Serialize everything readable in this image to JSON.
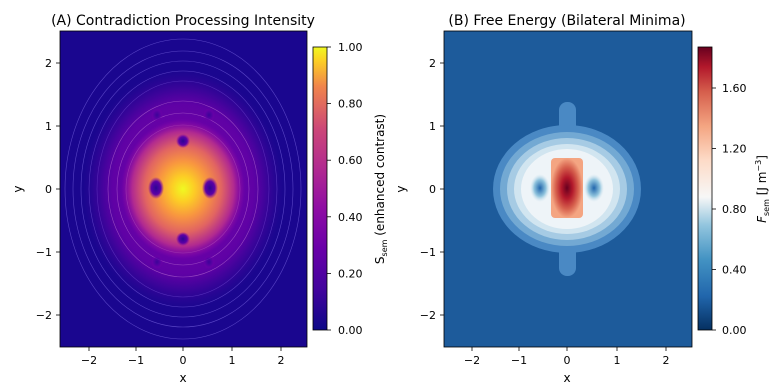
{
  "chart_data": [
    {
      "type": "heatmap",
      "title": "(A) Contradiction Processing Intensity",
      "xlabel": "x",
      "ylabel": "y",
      "xlim": [
        -2.5,
        2.5
      ],
      "ylim": [
        -2.5,
        2.5
      ],
      "xticks": [
        "−2",
        "−1",
        "0",
        "1",
        "2"
      ],
      "yticks": [
        "−2",
        "−1",
        "0",
        "1",
        "2"
      ],
      "colormap": "plasma",
      "colorbar": {
        "label_main": "S",
        "label_sub": "sem",
        "label_rest": " (enhanced contrast)",
        "range": [
          0,
          1
        ],
        "ticks": [
          "0.00",
          "0.20",
          "0.40",
          "0.60",
          "0.80",
          "1.00"
        ]
      },
      "features": {
        "peak": {
          "x": 0,
          "y": 0,
          "value": 1.0
        },
        "side_minima": [
          [
            -0.5,
            0
          ],
          [
            0.5,
            0
          ],
          [
            0,
            -0.8
          ],
          [
            0,
            0.8
          ]
        ]
      }
    },
    {
      "type": "heatmap",
      "title": "(B) Free Energy (Bilateral Minima)",
      "xlabel": "x",
      "ylabel": "y",
      "xlim": [
        -2.5,
        2.5
      ],
      "ylim": [
        -2.5,
        2.5
      ],
      "xticks": [
        "−2",
        "−1",
        "0",
        "1",
        "2"
      ],
      "yticks": [
        "−2",
        "−1",
        "0",
        "1",
        "2"
      ],
      "colormap": "RdBu_r",
      "colorbar": {
        "label_main": "F",
        "label_sub": "sem",
        "label_rest": " [J m",
        "label_sup": "−3",
        "label_end": "]",
        "range": [
          0,
          1.9
        ],
        "ticks": [
          "0.00",
          "0.40",
          "0.80",
          "1.20",
          "1.60"
        ]
      },
      "features": {
        "max": {
          "x": 0,
          "y": 0,
          "value": 1.9
        },
        "minima": [
          [
            -0.5,
            0
          ],
          [
            0.5,
            0
          ]
        ]
      }
    }
  ]
}
